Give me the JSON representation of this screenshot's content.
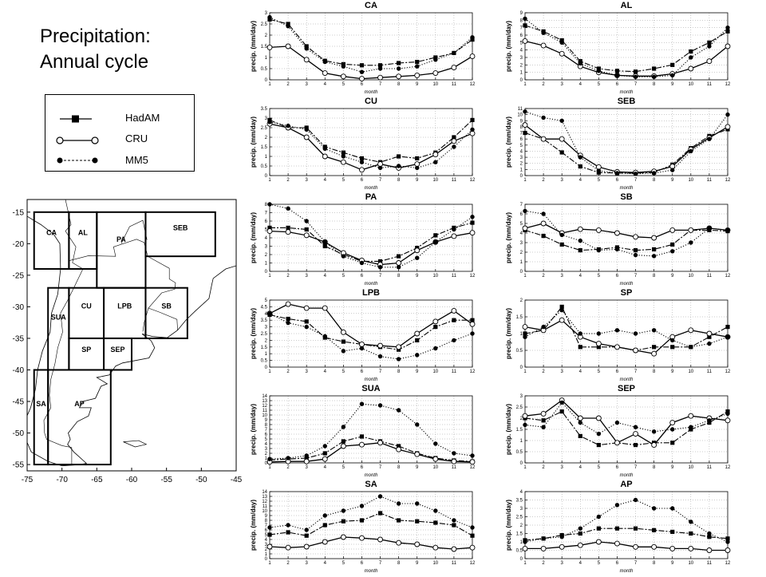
{
  "title_line1": "Precipitation:",
  "title_line2": "Annual cycle",
  "legend": [
    {
      "name": "HadAM",
      "marker": "square",
      "line": "solid"
    },
    {
      "name": "CRU",
      "marker": "open-circle",
      "line": "solid"
    },
    {
      "name": "MM5",
      "marker": "filled-circle",
      "line": "dotted"
    }
  ],
  "map": {
    "lat_ticks": [
      "-15",
      "-20",
      "-25",
      "-30",
      "-35",
      "-40",
      "-45",
      "-50",
      "-55"
    ],
    "lon_ticks": [
      "-75",
      "-70",
      "-65",
      "-60",
      "-55",
      "-50",
      "-45"
    ],
    "lon_range": [
      -75,
      -45
    ],
    "lat_range": [
      -56,
      -13
    ],
    "regions": [
      {
        "label": "CA",
        "lon": [
          -74,
          -69
        ],
        "lat": [
          -15,
          -24
        ]
      },
      {
        "label": "AL",
        "lon": [
          -69,
          -65
        ],
        "lat": [
          -15,
          -24
        ]
      },
      {
        "label": "PA",
        "lon": [
          -65,
          -58
        ],
        "lat": [
          -15,
          -27
        ]
      },
      {
        "label": "SEB",
        "lon": [
          -58,
          -48
        ],
        "lat": [
          -15,
          -22
        ]
      },
      {
        "label": "SUA",
        "lon": [
          -72,
          -69
        ],
        "lat": [
          -27,
          -40
        ]
      },
      {
        "label": "CU",
        "lon": [
          -69,
          -64
        ],
        "lat": [
          -27,
          -35
        ]
      },
      {
        "label": "LPB",
        "lon": [
          -64,
          -58
        ],
        "lat": [
          -27,
          -35
        ]
      },
      {
        "label": "SB",
        "lon": [
          -58,
          -52
        ],
        "lat": [
          -27,
          -35
        ]
      },
      {
        "label": "SP",
        "lon": [
          -69,
          -64
        ],
        "lat": [
          -35,
          -40
        ]
      },
      {
        "label": "SEP",
        "lon": [
          -64,
          -60
        ],
        "lat": [
          -35,
          -40
        ]
      },
      {
        "label": "SA",
        "lon": [
          -74,
          -72
        ],
        "lat": [
          -40,
          -55
        ]
      },
      {
        "label": "AP",
        "lon": [
          -72,
          -63
        ],
        "lat": [
          -40,
          -55
        ]
      }
    ]
  },
  "chart_data": [
    {
      "type": "line",
      "title": "CA",
      "xlabel": "month",
      "ylabel": "precip. (mm/day)",
      "x": [
        1,
        2,
        3,
        4,
        5,
        6,
        7,
        8,
        9,
        10,
        11,
        12
      ],
      "ylim": [
        0,
        3
      ],
      "yticks": [
        0,
        0.5,
        1,
        1.5,
        2,
        2.5,
        3
      ],
      "series": [
        {
          "name": "HadAM",
          "values": [
            2.7,
            2.5,
            1.5,
            0.85,
            0.7,
            0.65,
            0.65,
            0.75,
            0.8,
            1.0,
            1.2,
            1.8
          ]
        },
        {
          "name": "CRU",
          "values": [
            1.45,
            1.5,
            0.9,
            0.3,
            0.15,
            0.05,
            0.1,
            0.15,
            0.2,
            0.3,
            0.55,
            1.05
          ]
        },
        {
          "name": "MM5",
          "values": [
            2.8,
            2.4,
            1.4,
            0.8,
            0.6,
            0.35,
            0.5,
            0.5,
            0.6,
            0.9,
            1.2,
            1.9
          ]
        }
      ]
    },
    {
      "type": "line",
      "title": "AL",
      "xlabel": "month",
      "ylabel": "precip. (mm/day)",
      "x": [
        1,
        2,
        3,
        4,
        5,
        6,
        7,
        8,
        9,
        10,
        11,
        12
      ],
      "ylim": [
        0,
        9
      ],
      "yticks": [
        0,
        1,
        2,
        3,
        4,
        5,
        6,
        7,
        8,
        9
      ],
      "series": [
        {
          "name": "HadAM",
          "values": [
            7.3,
            6.5,
            5.3,
            2.5,
            1.5,
            1.2,
            1.1,
            1.5,
            2.0,
            3.8,
            5.0,
            6.5
          ]
        },
        {
          "name": "CRU",
          "values": [
            5.2,
            4.6,
            3.5,
            1.8,
            1.0,
            0.6,
            0.5,
            0.5,
            0.8,
            1.5,
            2.5,
            4.5
          ]
        },
        {
          "name": "MM5",
          "values": [
            8.2,
            6.3,
            5.0,
            2.2,
            1.2,
            0.6,
            0.4,
            0.4,
            0.6,
            3.0,
            4.5,
            7.0
          ]
        }
      ]
    },
    {
      "type": "line",
      "title": "CU",
      "xlabel": "month",
      "ylabel": "precip. (mm/day)",
      "x": [
        1,
        2,
        3,
        4,
        5,
        6,
        7,
        8,
        9,
        10,
        11,
        12
      ],
      "ylim": [
        0,
        3.5
      ],
      "yticks": [
        0,
        0.5,
        1,
        1.5,
        2,
        2.5,
        3,
        3.5
      ],
      "series": [
        {
          "name": "HadAM",
          "values": [
            2.9,
            2.5,
            2.5,
            1.5,
            1.2,
            0.9,
            0.7,
            1.0,
            0.9,
            1.2,
            2.0,
            2.9
          ]
        },
        {
          "name": "CRU",
          "values": [
            2.7,
            2.5,
            2.0,
            1.0,
            0.7,
            0.3,
            0.6,
            0.4,
            0.6,
            1.1,
            1.8,
            2.2
          ]
        },
        {
          "name": "MM5",
          "values": [
            2.8,
            2.6,
            2.4,
            1.4,
            1.0,
            0.7,
            0.4,
            0.5,
            0.4,
            0.7,
            1.5,
            2.4
          ]
        }
      ]
    },
    {
      "type": "line",
      "title": "SEB",
      "xlabel": "month",
      "ylabel": "precip. (mm/day)",
      "x": [
        1,
        2,
        3,
        4,
        5,
        6,
        7,
        8,
        9,
        10,
        11,
        12
      ],
      "ylim": [
        0,
        11
      ],
      "yticks": [
        0,
        1,
        2,
        3,
        4,
        5,
        6,
        7,
        8,
        9,
        10,
        11
      ],
      "series": [
        {
          "name": "HadAM",
          "values": [
            7.0,
            6.0,
            3.8,
            1.5,
            0.5,
            0.4,
            0.4,
            0.5,
            1.8,
            4.5,
            6.5,
            7.6
          ]
        },
        {
          "name": "CRU",
          "values": [
            8.3,
            6.0,
            6.0,
            3.3,
            1.4,
            0.6,
            0.5,
            0.7,
            1.5,
            4.3,
            6.2,
            8.0
          ]
        },
        {
          "name": "MM5",
          "values": [
            10.5,
            9.5,
            9.0,
            3.0,
            0.8,
            0.4,
            0.3,
            0.4,
            0.9,
            4.0,
            6.0,
            10.0
          ]
        }
      ]
    },
    {
      "type": "line",
      "title": "PA",
      "xlabel": "month",
      "ylabel": "precip. (mm/day)",
      "x": [
        1,
        2,
        3,
        4,
        5,
        6,
        7,
        8,
        9,
        10,
        11,
        12
      ],
      "ylim": [
        0,
        8
      ],
      "yticks": [
        0,
        1,
        2,
        3,
        4,
        5,
        6,
        7,
        8
      ],
      "series": [
        {
          "name": "HadAM",
          "values": [
            5.2,
            5.2,
            5.0,
            3.0,
            2.0,
            1.2,
            1.2,
            1.8,
            2.8,
            4.3,
            5.2,
            5.8
          ]
        },
        {
          "name": "CRU",
          "values": [
            4.8,
            4.7,
            4.3,
            3.5,
            2.2,
            1.3,
            0.8,
            1.0,
            2.5,
            3.5,
            4.2,
            4.6
          ]
        },
        {
          "name": "MM5",
          "values": [
            8.0,
            7.5,
            6.0,
            3.5,
            1.8,
            1.0,
            0.5,
            0.5,
            1.6,
            3.5,
            5.0,
            6.5
          ]
        }
      ]
    },
    {
      "type": "line",
      "title": "SB",
      "xlabel": "month",
      "ylabel": "precip. (mm/day)",
      "x": [
        1,
        2,
        3,
        4,
        5,
        6,
        7,
        8,
        9,
        10,
        11,
        12
      ],
      "ylim": [
        0,
        7
      ],
      "yticks": [
        0,
        1,
        2,
        3,
        4,
        5,
        6,
        7
      ],
      "series": [
        {
          "name": "HadAM",
          "values": [
            4.3,
            3.7,
            2.8,
            2.2,
            2.3,
            2.5,
            2.2,
            2.3,
            2.8,
            4.3,
            4.3,
            4.2
          ]
        },
        {
          "name": "CRU",
          "values": [
            4.5,
            5.0,
            4.0,
            4.4,
            4.3,
            4.0,
            3.6,
            3.5,
            4.3,
            4.3,
            4.5,
            4.3
          ]
        },
        {
          "name": "MM5",
          "values": [
            6.3,
            6.0,
            3.8,
            3.2,
            2.2,
            2.3,
            1.7,
            1.6,
            2.1,
            3.0,
            4.5,
            4.3
          ]
        }
      ]
    },
    {
      "type": "line",
      "title": "LPB",
      "xlabel": "month",
      "ylabel": "precip. (mm/day)",
      "x": [
        1,
        2,
        3,
        4,
        5,
        6,
        7,
        8,
        9,
        10,
        11,
        12
      ],
      "ylim": [
        0,
        5
      ],
      "yticks": [
        0,
        0.5,
        1,
        1.5,
        2,
        2.5,
        3,
        3.5,
        4,
        4.5,
        5
      ],
      "series": [
        {
          "name": "HadAM",
          "values": [
            3.9,
            3.6,
            3.4,
            2.2,
            1.9,
            1.7,
            1.5,
            1.3,
            2.0,
            3.0,
            3.5,
            3.5
          ]
        },
        {
          "name": "CRU",
          "values": [
            4.0,
            4.7,
            4.4,
            4.4,
            2.6,
            1.7,
            1.6,
            1.5,
            2.5,
            3.4,
            4.2,
            3.2
          ]
        },
        {
          "name": "MM5",
          "values": [
            4.0,
            3.3,
            3.0,
            2.3,
            1.2,
            1.4,
            0.8,
            0.6,
            0.9,
            1.4,
            2.0,
            2.5
          ]
        }
      ]
    },
    {
      "type": "line",
      "title": "SP",
      "xlabel": "month",
      "ylabel": "precip. (mm/day)",
      "x": [
        1,
        2,
        3,
        4,
        5,
        6,
        7,
        8,
        9,
        10,
        11,
        12
      ],
      "ylim": [
        0,
        2
      ],
      "yticks": [
        0,
        0.5,
        1,
        1.5,
        2
      ],
      "series": [
        {
          "name": "HadAM",
          "values": [
            1.0,
            1.1,
            1.8,
            0.6,
            0.6,
            0.6,
            0.5,
            0.6,
            0.6,
            0.6,
            0.9,
            1.2
          ]
        },
        {
          "name": "CRU",
          "values": [
            1.2,
            1.1,
            1.4,
            0.9,
            0.7,
            0.6,
            0.5,
            0.4,
            0.9,
            1.1,
            1.0,
            0.9
          ]
        },
        {
          "name": "MM5",
          "values": [
            0.9,
            1.2,
            1.7,
            1.0,
            1.0,
            1.1,
            1.0,
            1.1,
            0.8,
            0.6,
            0.7,
            0.9
          ]
        }
      ]
    },
    {
      "type": "line",
      "title": "SUA",
      "xlabel": "month",
      "ylabel": "precip. (mm/day)",
      "x": [
        1,
        2,
        3,
        4,
        5,
        6,
        7,
        8,
        9,
        10,
        11,
        12
      ],
      "ylim": [
        0,
        14
      ],
      "yticks": [
        0,
        1,
        2,
        3,
        4,
        5,
        6,
        7,
        8,
        9,
        10,
        11,
        12,
        13,
        14
      ],
      "series": [
        {
          "name": "HadAM",
          "values": [
            0.6,
            0.8,
            1.0,
            2.0,
            4.5,
            5.5,
            4.5,
            3.5,
            2.0,
            1.0,
            0.5,
            0.3
          ]
        },
        {
          "name": "CRU",
          "values": [
            0.2,
            0.3,
            0.3,
            0.8,
            3.5,
            3.8,
            4.2,
            2.8,
            1.8,
            0.8,
            0.3,
            0.2
          ]
        },
        {
          "name": "MM5",
          "values": [
            0.8,
            1.0,
            1.5,
            3.5,
            7.5,
            12.3,
            12.0,
            11.0,
            8.0,
            4.0,
            2.0,
            1.5
          ]
        }
      ]
    },
    {
      "type": "line",
      "title": "SEP",
      "xlabel": "month",
      "ylabel": "precip. (mm/day)",
      "x": [
        1,
        2,
        3,
        4,
        5,
        6,
        7,
        8,
        9,
        10,
        11,
        12
      ],
      "ylim": [
        0,
        3
      ],
      "yticks": [
        0,
        0.5,
        1,
        1.5,
        2,
        2.5,
        3
      ],
      "series": [
        {
          "name": "HadAM",
          "values": [
            2.0,
            1.9,
            2.3,
            1.2,
            0.8,
            0.9,
            0.8,
            0.9,
            0.9,
            1.5,
            1.8,
            2.3
          ]
        },
        {
          "name": "CRU",
          "values": [
            2.1,
            2.2,
            2.8,
            2.0,
            2.0,
            0.9,
            1.3,
            0.8,
            1.8,
            2.1,
            2.0,
            1.9
          ]
        },
        {
          "name": "MM5",
          "values": [
            1.7,
            1.6,
            2.7,
            1.8,
            1.3,
            1.8,
            1.6,
            1.4,
            1.5,
            1.6,
            1.9,
            2.2
          ]
        }
      ]
    },
    {
      "type": "line",
      "title": "SA",
      "xlabel": "month",
      "ylabel": "precip. (mm/day)",
      "x": [
        1,
        2,
        3,
        4,
        5,
        6,
        7,
        8,
        9,
        10,
        11,
        12
      ],
      "ylim": [
        0,
        14
      ],
      "yticks": [
        0,
        1,
        2,
        3,
        4,
        5,
        6,
        7,
        8,
        9,
        10,
        11,
        12,
        13,
        14
      ],
      "series": [
        {
          "name": "HadAM",
          "values": [
            5.0,
            5.5,
            4.8,
            7.0,
            7.8,
            8.0,
            9.5,
            8.0,
            7.8,
            7.5,
            7.0,
            4.8
          ]
        },
        {
          "name": "CRU",
          "values": [
            2.5,
            2.3,
            2.5,
            3.5,
            4.5,
            4.3,
            4.0,
            3.3,
            3.0,
            2.3,
            2.0,
            2.3
          ]
        },
        {
          "name": "MM5",
          "values": [
            6.5,
            7.0,
            6.0,
            9.0,
            10.0,
            11.0,
            13.0,
            11.5,
            11.5,
            10.0,
            8.0,
            6.5
          ]
        }
      ]
    },
    {
      "type": "line",
      "title": "AP",
      "xlabel": "month",
      "ylabel": "precip. (mm/day)",
      "x": [
        1,
        2,
        3,
        4,
        5,
        6,
        7,
        8,
        9,
        10,
        11,
        12
      ],
      "ylim": [
        0,
        4
      ],
      "yticks": [
        0,
        0.5,
        1,
        1.5,
        2,
        2.5,
        3,
        3.5,
        4
      ],
      "series": [
        {
          "name": "HadAM",
          "values": [
            1.1,
            1.2,
            1.4,
            1.5,
            1.8,
            1.8,
            1.8,
            1.7,
            1.6,
            1.5,
            1.3,
            1.2
          ]
        },
        {
          "name": "CRU",
          "values": [
            0.6,
            0.6,
            0.7,
            0.8,
            1.0,
            0.9,
            0.7,
            0.7,
            0.6,
            0.6,
            0.5,
            0.5
          ]
        },
        {
          "name": "MM5",
          "values": [
            1.0,
            1.2,
            1.3,
            1.8,
            2.5,
            3.2,
            3.5,
            3.0,
            3.0,
            2.2,
            1.5,
            1.0
          ]
        }
      ]
    }
  ]
}
